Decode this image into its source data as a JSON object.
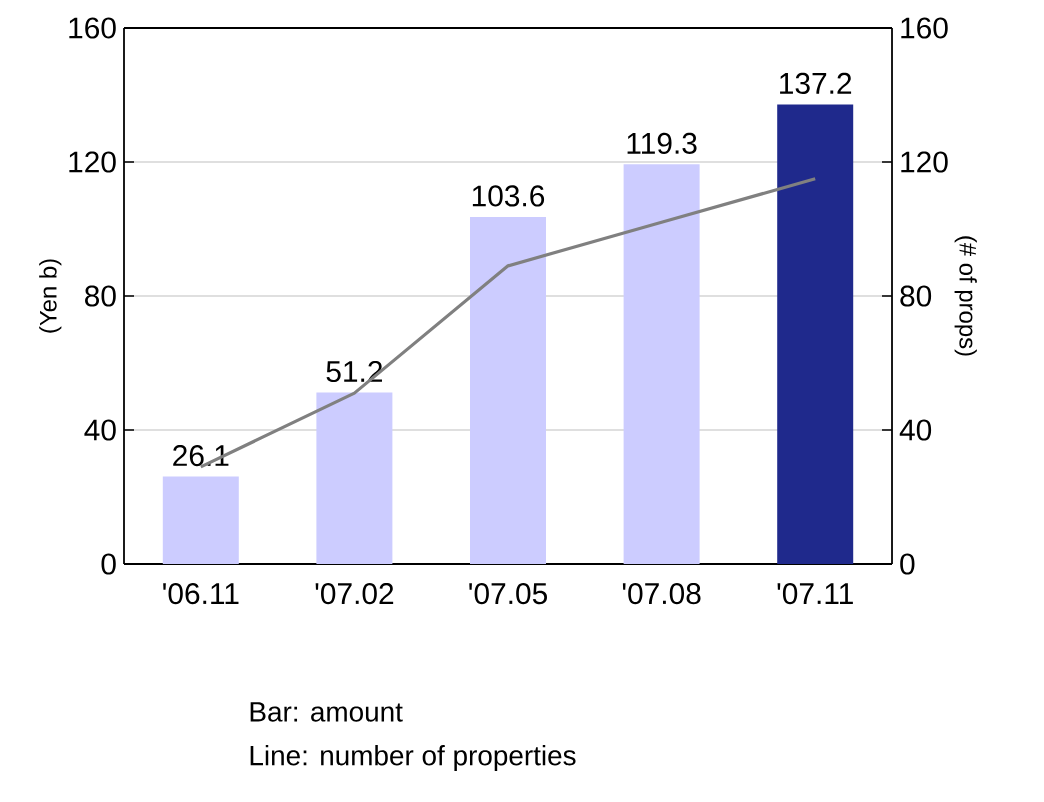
{
  "chart_data": {
    "type": "bar",
    "ylabel": "(Yen b)",
    "y2label": "(# of props)",
    "categories": [
      "'06.11",
      "'07.02",
      "'07.05",
      "'07.08",
      "'07.11"
    ],
    "series": [
      {
        "colors": [
          "#ccccff",
          "#ccccff",
          "#ccccff",
          "#ccccff",
          "#1f298c"
        ],
        "values": [
          26.1,
          51.2,
          103.6,
          119.3,
          137.2
        ],
        "value_labels": [
          "26.1",
          "51.2",
          "103.6",
          "119.3",
          "137.2"
        ]
      },
      {
        "type": "line",
        "axis": "y2",
        "color": "#808080",
        "values": [
          29,
          51,
          89,
          102,
          115
        ]
      }
    ],
    "ylim": [
      0,
      160
    ],
    "yticks": [
      0,
      40,
      80,
      120,
      160
    ],
    "y2lim": [
      0,
      160
    ],
    "y2ticks": [
      0,
      40,
      80,
      120,
      160
    ],
    "grid": "y",
    "marker": "none",
    "line_style": "solid",
    "annotations": [
      "Bar: amount",
      "Line: number of properties"
    ]
  }
}
